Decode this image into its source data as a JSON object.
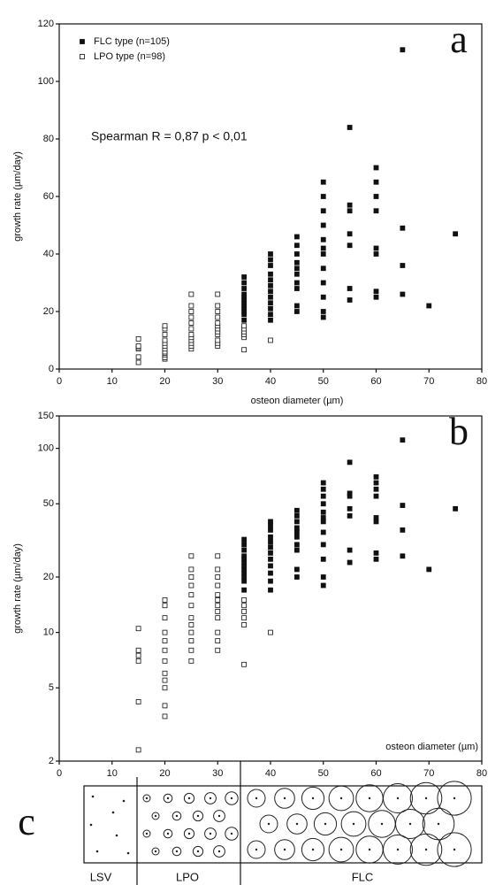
{
  "chart_data": [
    {
      "type": "scatter",
      "panel": "a",
      "annotation": "Spearman R = 0,87   p < 0,01",
      "x_label": "osteon diameter (µm)",
      "y_label": "growth rate (µm/day)",
      "xlim": [
        0,
        80
      ],
      "xticks": [
        0,
        10,
        20,
        30,
        40,
        50,
        60,
        70,
        80
      ],
      "ylim": [
        0,
        120
      ],
      "yticks": [
        0,
        20,
        40,
        60,
        80,
        100,
        120
      ],
      "log_y": false,
      "legend": "upper left",
      "series": [
        {
          "name": "FLC type (n=105)",
          "color": "#111111",
          "marker": "filled",
          "x": [
            35,
            35,
            35,
            35,
            35,
            35,
            35,
            35,
            35,
            35,
            35,
            35,
            40,
            40,
            40,
            40,
            40,
            40,
            40,
            40,
            40,
            40,
            40,
            40,
            45,
            45,
            45,
            45,
            45,
            45,
            45,
            45,
            45,
            45,
            50,
            50,
            50,
            50,
            50,
            50,
            50,
            50,
            50,
            50,
            50,
            50,
            55,
            55,
            55,
            55,
            55,
            55,
            55,
            60,
            60,
            60,
            60,
            60,
            60,
            60,
            60,
            65,
            65,
            65,
            65,
            70,
            75
          ],
          "y": [
            17,
            19,
            20,
            21,
            22,
            23,
            24,
            25,
            26,
            28,
            30,
            32,
            17,
            19,
            21,
            23,
            25,
            27,
            29,
            31,
            33,
            36,
            38,
            40,
            20,
            22,
            28,
            30,
            33,
            35,
            37,
            40,
            43,
            46,
            18,
            20,
            25,
            30,
            35,
            40,
            42,
            45,
            50,
            55,
            60,
            65,
            24,
            28,
            43,
            47,
            55,
            57,
            84,
            25,
            27,
            40,
            42,
            55,
            60,
            65,
            70,
            26,
            36,
            49,
            111,
            22,
            47
          ]
        },
        {
          "name": "LPO type (n=98)",
          "color": "#111111",
          "marker": "open",
          "x": [
            15,
            15,
            15,
            15,
            15,
            15,
            20,
            20,
            20,
            20,
            20,
            20,
            20,
            20,
            20,
            20,
            20,
            20,
            25,
            25,
            25,
            25,
            25,
            25,
            25,
            25,
            25,
            25,
            25,
            25,
            30,
            30,
            30,
            30,
            30,
            30,
            30,
            30,
            30,
            30,
            30,
            30,
            35,
            35,
            35,
            35,
            35,
            35,
            40
          ],
          "y": [
            2.3,
            4.2,
            7,
            7.5,
            8,
            10.5,
            3.5,
            4,
            5,
            5.5,
            6,
            7,
            8,
            9,
            10,
            12,
            14,
            15,
            7,
            8,
            9,
            10,
            11,
            12,
            14,
            16,
            18,
            20,
            22,
            26,
            8,
            9,
            10,
            12,
            13,
            14,
            15,
            16,
            18,
            20,
            22,
            26,
            6.7,
            11,
            12,
            13,
            14,
            15,
            10
          ]
        }
      ]
    },
    {
      "type": "scatter",
      "panel": "b",
      "x_label": "osteon diameter (µm)",
      "y_label": "growth rate (µm/day)",
      "xlim": [
        0,
        80
      ],
      "xticks": [
        0,
        10,
        20,
        30,
        40,
        50,
        60,
        70,
        80
      ],
      "ylim": [
        2,
        150
      ],
      "yticks": [
        2,
        5,
        10,
        20,
        50,
        100,
        150
      ],
      "log_y": true,
      "series": [
        {
          "name": "FLC type (n=105)",
          "color": "#111111",
          "marker": "filled",
          "x": [
            35,
            35,
            35,
            35,
            35,
            35,
            35,
            35,
            35,
            35,
            35,
            35,
            40,
            40,
            40,
            40,
            40,
            40,
            40,
            40,
            40,
            40,
            40,
            40,
            45,
            45,
            45,
            45,
            45,
            45,
            45,
            45,
            45,
            45,
            50,
            50,
            50,
            50,
            50,
            50,
            50,
            50,
            50,
            50,
            50,
            50,
            55,
            55,
            55,
            55,
            55,
            55,
            55,
            60,
            60,
            60,
            60,
            60,
            60,
            60,
            60,
            65,
            65,
            65,
            65,
            70,
            75
          ],
          "y": [
            17,
            19,
            20,
            21,
            22,
            23,
            24,
            25,
            26,
            28,
            30,
            32,
            17,
            19,
            21,
            23,
            25,
            27,
            29,
            31,
            33,
            36,
            38,
            40,
            20,
            22,
            28,
            30,
            33,
            35,
            37,
            40,
            43,
            46,
            18,
            20,
            25,
            30,
            35,
            40,
            42,
            45,
            50,
            55,
            60,
            65,
            24,
            28,
            43,
            47,
            55,
            57,
            84,
            25,
            27,
            40,
            42,
            55,
            60,
            65,
            70,
            26,
            36,
            49,
            111,
            22,
            47
          ]
        },
        {
          "name": "LPO type (n=98)",
          "color": "#111111",
          "marker": "open",
          "x": [
            15,
            15,
            15,
            15,
            15,
            15,
            20,
            20,
            20,
            20,
            20,
            20,
            20,
            20,
            20,
            20,
            20,
            20,
            25,
            25,
            25,
            25,
            25,
            25,
            25,
            25,
            25,
            25,
            25,
            25,
            30,
            30,
            30,
            30,
            30,
            30,
            30,
            30,
            30,
            30,
            30,
            30,
            35,
            35,
            35,
            35,
            35,
            35,
            40
          ],
          "y": [
            2.3,
            4.2,
            7,
            7.5,
            8,
            10.5,
            3.5,
            4,
            5,
            5.5,
            6,
            7,
            8,
            9,
            10,
            12,
            14,
            15,
            7,
            8,
            9,
            10,
            11,
            12,
            14,
            16,
            18,
            20,
            22,
            26,
            8,
            9,
            10,
            12,
            13,
            14,
            15,
            16,
            18,
            20,
            22,
            26,
            6.7,
            11,
            12,
            13,
            14,
            15,
            10
          ]
        }
      ]
    }
  ],
  "diagram": {
    "label": "c",
    "zones": [
      "LSV",
      "LPO",
      "FLC"
    ]
  }
}
